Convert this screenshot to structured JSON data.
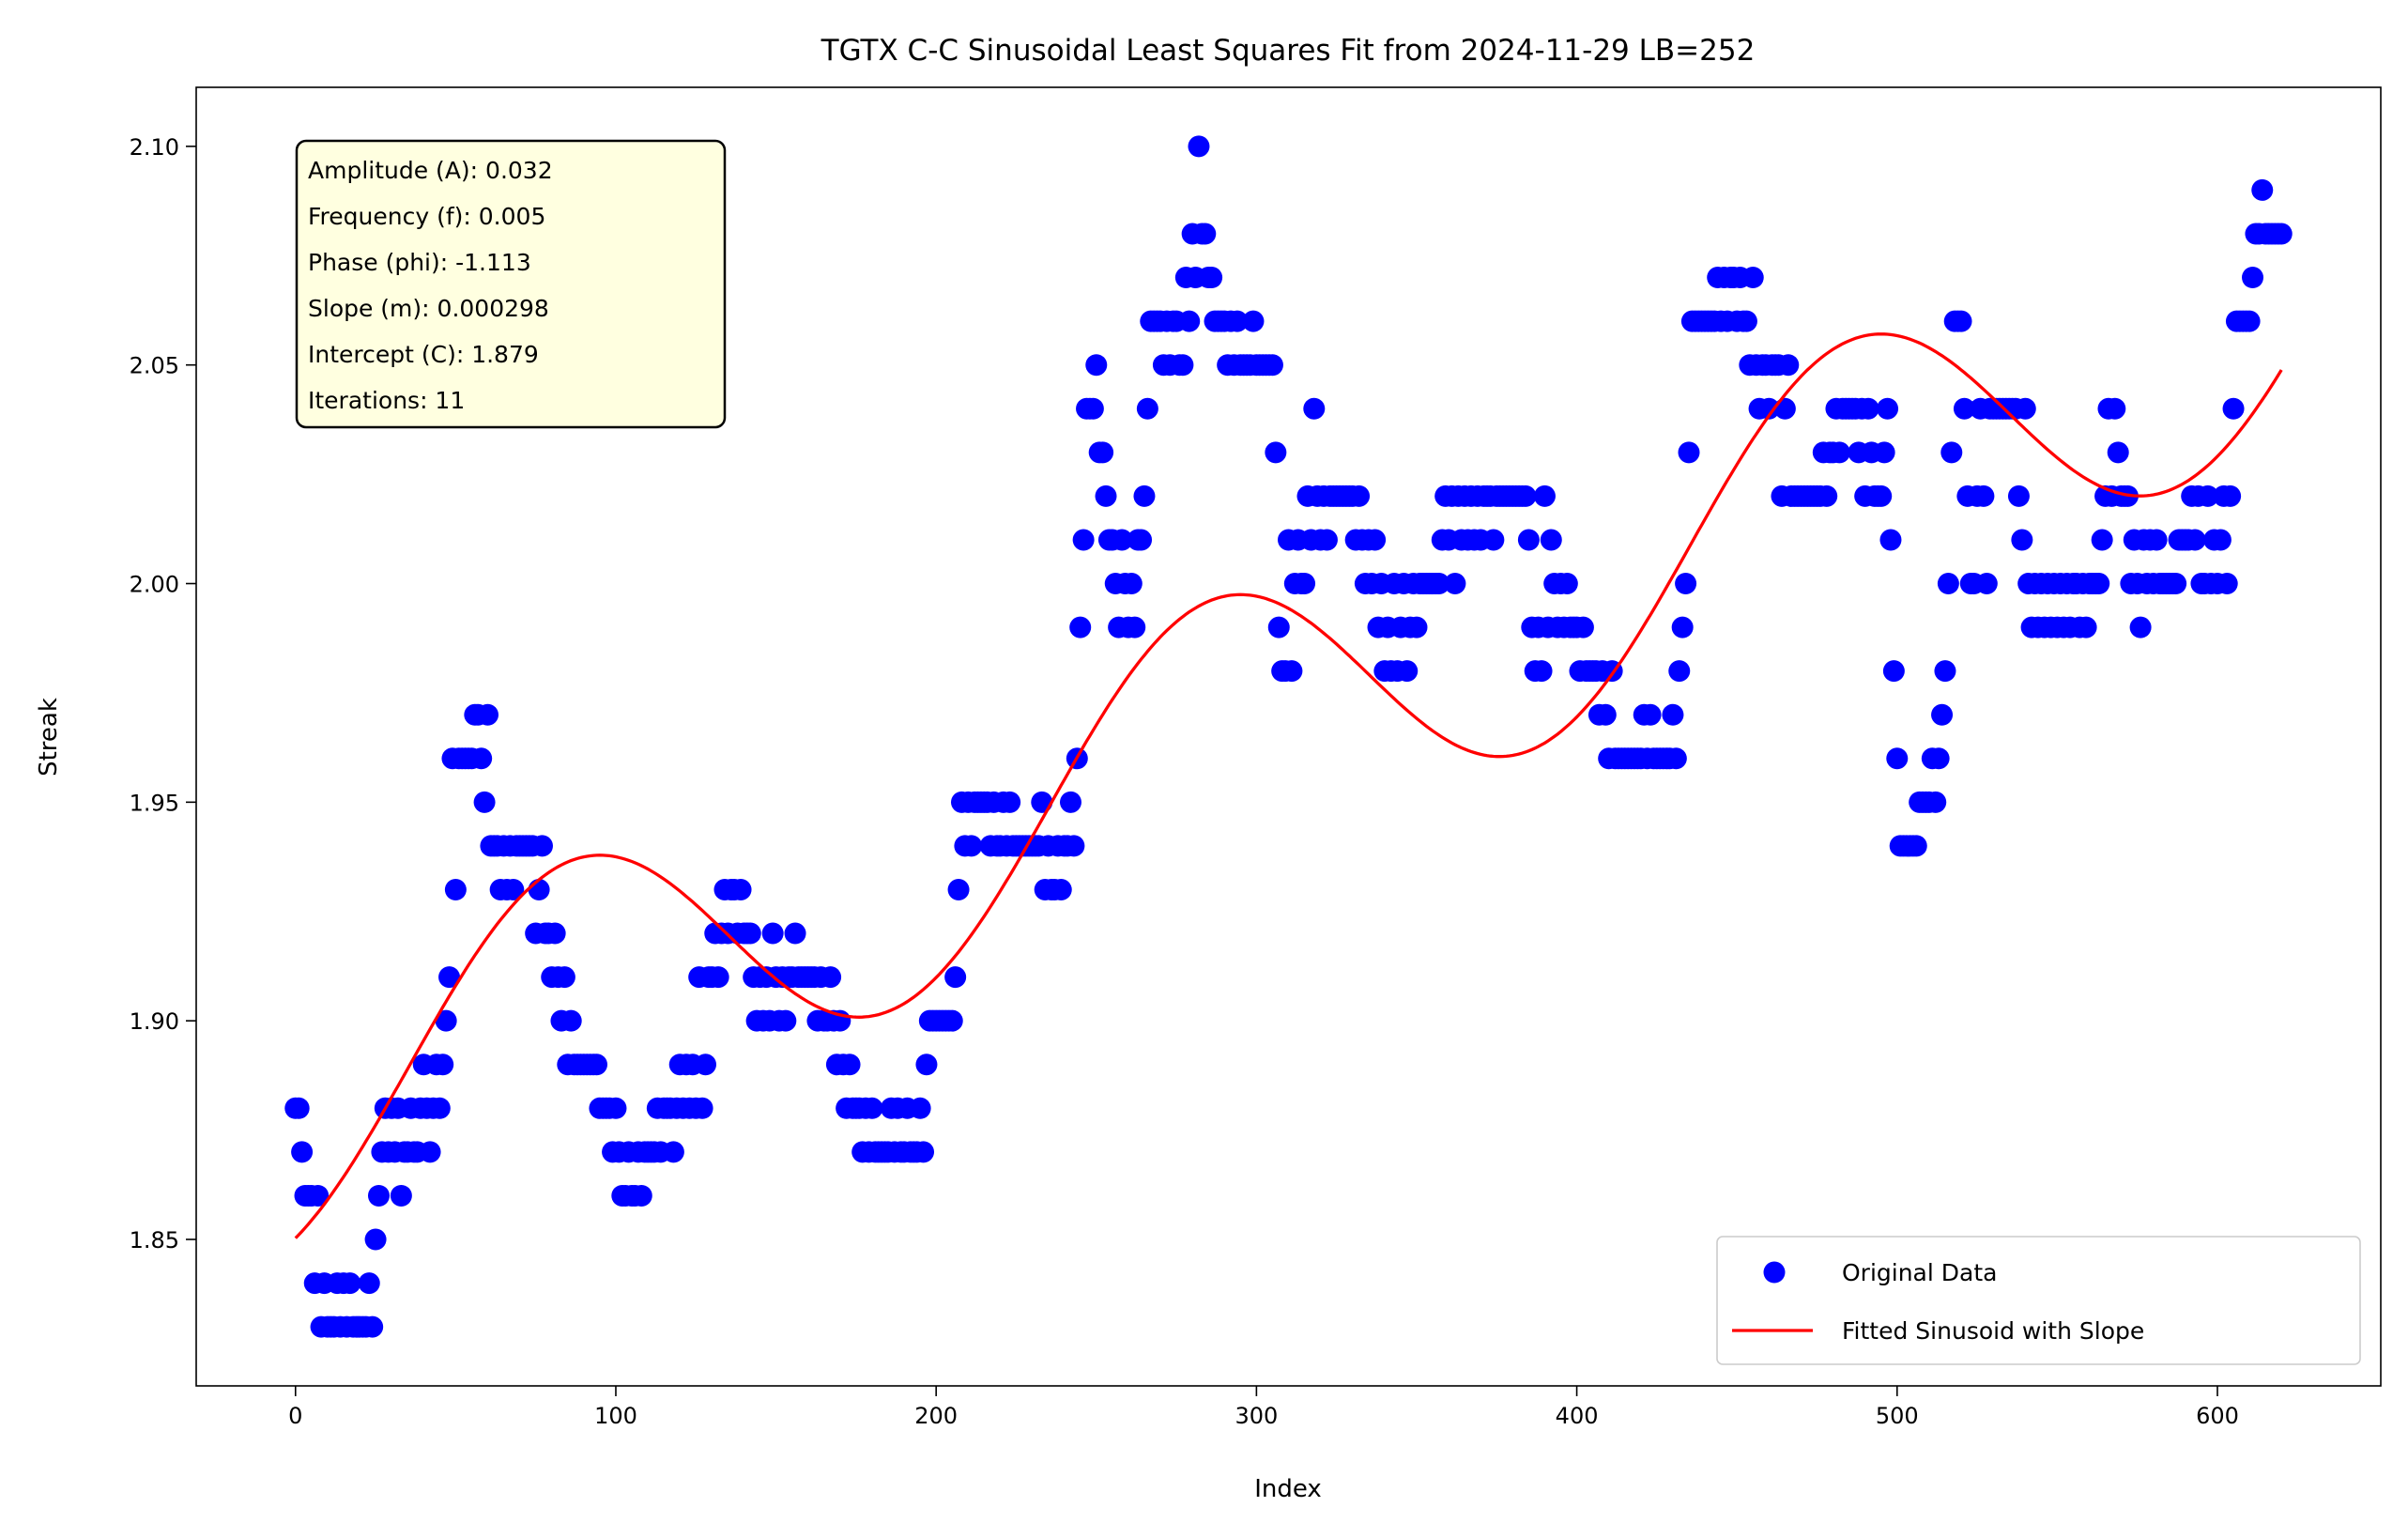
{
  "chart_data": {
    "type": "scatter",
    "title": "TGTX C-C Sinusoidal Least Squares Fit from 2024-11-29 LB=252",
    "xlabel": "Index",
    "ylabel": "Streak",
    "xlim": [
      -31,
      651
    ],
    "ylim": [
      1.8165,
      2.1135
    ],
    "x_ticks": [
      0,
      100,
      200,
      300,
      400,
      500,
      600
    ],
    "x_tick_labels": [
      "0",
      "100",
      "200",
      "300",
      "400",
      "500",
      "600"
    ],
    "y_ticks": [
      1.85,
      1.9,
      1.95,
      2.0,
      2.05,
      2.1
    ],
    "y_tick_labels": [
      "1.85",
      "1.90",
      "1.95",
      "2.00",
      "2.05",
      "2.10"
    ],
    "grid": false,
    "legend_placement": "lower-right",
    "series": [
      {
        "name": "Original Data",
        "kind": "scatter",
        "color": "#0000ff",
        "y": [
          1.88,
          1.88,
          1.87,
          1.86,
          1.86,
          1.86,
          1.84,
          1.86,
          1.83,
          1.84,
          1.83,
          1.83,
          1.83,
          1.84,
          1.83,
          1.84,
          1.83,
          1.84,
          1.83,
          1.83,
          1.83,
          1.83,
          1.83,
          1.84,
          1.83,
          1.85,
          1.86,
          1.87,
          1.88,
          1.87,
          1.88,
          1.87,
          1.88,
          1.86,
          1.87,
          1.87,
          1.88,
          1.87,
          1.87,
          1.88,
          1.89,
          1.88,
          1.87,
          1.88,
          1.89,
          1.88,
          1.89,
          1.9,
          1.91,
          1.96,
          1.93,
          1.96,
          1.96,
          1.96,
          1.96,
          1.96,
          1.97,
          1.97,
          1.96,
          1.95,
          1.97,
          1.94,
          1.94,
          1.94,
          1.93,
          1.94,
          1.93,
          1.94,
          1.93,
          1.94,
          1.94,
          1.94,
          1.94,
          1.94,
          1.94,
          1.92,
          1.93,
          1.94,
          1.92,
          1.92,
          1.91,
          1.92,
          1.91,
          1.9,
          1.91,
          1.89,
          1.9,
          1.89,
          1.89,
          1.89,
          1.89,
          1.89,
          1.89,
          1.89,
          1.89,
          1.88,
          1.88,
          1.88,
          1.88,
          1.87,
          1.88,
          1.87,
          1.86,
          1.86,
          1.87,
          1.86,
          1.86,
          1.87,
          1.86,
          1.87,
          1.87,
          1.87,
          1.87,
          1.88,
          1.87,
          1.88,
          1.88,
          1.88,
          1.87,
          1.88,
          1.89,
          1.88,
          1.89,
          1.88,
          1.89,
          1.88,
          1.91,
          1.88,
          1.89,
          1.91,
          1.91,
          1.92,
          1.91,
          1.92,
          1.93,
          1.92,
          1.93,
          1.93,
          1.92,
          1.93,
          1.92,
          1.92,
          1.92,
          1.91,
          1.9,
          1.91,
          1.9,
          1.91,
          1.9,
          1.92,
          1.91,
          1.9,
          1.91,
          1.9,
          1.91,
          1.91,
          1.92,
          1.91,
          1.91,
          1.91,
          1.91,
          1.91,
          1.91,
          1.9,
          1.91,
          1.9,
          1.9,
          1.91,
          1.9,
          1.89,
          1.9,
          1.89,
          1.88,
          1.89,
          1.88,
          1.88,
          1.88,
          1.87,
          1.88,
          1.87,
          1.88,
          1.87,
          1.87,
          1.87,
          1.87,
          1.87,
          1.88,
          1.87,
          1.88,
          1.87,
          1.87,
          1.88,
          1.87,
          1.87,
          1.87,
          1.88,
          1.87,
          1.89,
          1.9,
          1.9,
          1.9,
          1.9,
          1.9,
          1.9,
          1.9,
          1.9,
          1.91,
          1.93,
          1.95,
          1.94,
          1.95,
          1.94,
          1.95,
          1.95,
          1.95,
          1.95,
          1.95,
          1.94,
          1.95,
          1.94,
          1.94,
          1.95,
          1.94,
          1.95,
          1.94,
          1.94,
          1.94,
          1.94,
          1.94,
          1.94,
          1.94,
          1.94,
          1.94,
          1.95,
          1.93,
          1.94,
          1.93,
          1.93,
          1.94,
          1.93,
          1.94,
          1.94,
          1.95,
          1.94,
          1.96,
          1.99,
          2.01,
          2.04,
          2.04,
          2.04,
          2.05,
          2.03,
          2.03,
          2.02,
          2.01,
          2.01,
          2.0,
          1.99,
          2.01,
          2.0,
          1.99,
          2.0,
          1.99,
          2.01,
          2.01,
          2.02,
          2.04,
          2.06,
          2.06,
          2.06,
          2.06,
          2.05,
          2.06,
          2.05,
          2.06,
          2.06,
          2.05,
          2.05,
          2.07,
          2.06,
          2.08,
          2.07,
          2.1,
          2.08,
          2.08,
          2.07,
          2.07,
          2.06,
          2.06,
          2.06,
          2.06,
          2.05,
          2.06,
          2.05,
          2.06,
          2.05,
          2.05,
          2.05,
          2.05,
          2.06,
          2.05,
          2.05,
          2.05,
          2.05,
          2.05,
          2.05,
          2.03,
          1.99,
          1.98,
          1.98,
          2.01,
          1.98,
          2.0,
          2.01,
          2.0,
          2.0,
          2.02,
          2.01,
          2.04,
          2.02,
          2.01,
          2.02,
          2.01,
          2.02,
          2.02,
          2.02,
          2.02,
          2.02,
          2.02,
          2.02,
          2.02,
          2.01,
          2.02,
          2.01,
          2.0,
          2.01,
          2.0,
          2.01,
          1.99,
          2.0,
          1.98,
          1.99,
          1.98,
          2.0,
          1.98,
          1.99,
          2.0,
          1.98,
          1.99,
          2.0,
          1.99,
          2.0,
          2.0,
          2.0,
          2.0,
          2.0,
          2.0,
          2.0,
          2.01,
          2.02,
          2.01,
          2.02,
          2.0,
          2.02,
          2.01,
          2.02,
          2.01,
          2.02,
          2.01,
          2.02,
          2.01,
          2.02,
          2.02,
          2.02,
          2.01,
          2.02,
          2.02,
          2.02,
          2.02,
          2.02,
          2.02,
          2.02,
          2.02,
          2.02,
          2.02,
          2.01,
          1.99,
          1.98,
          1.99,
          1.98,
          2.02,
          1.99,
          2.01,
          2.0,
          1.99,
          2.0,
          1.99,
          2.0,
          1.99,
          1.99,
          1.99,
          1.98,
          1.99,
          1.98,
          1.98,
          1.98,
          1.98,
          1.97,
          1.98,
          1.97,
          1.96,
          1.98,
          1.96,
          1.96,
          1.96,
          1.96,
          1.96,
          1.96,
          1.96,
          1.96,
          1.96,
          1.97,
          1.96,
          1.97,
          1.96,
          1.96,
          1.96,
          1.96,
          1.96,
          1.96,
          1.97,
          1.96,
          1.98,
          1.99,
          2.0,
          2.03,
          2.06,
          2.06,
          2.06,
          2.06,
          2.06,
          2.06,
          2.06,
          2.06,
          2.07,
          2.06,
          2.07,
          2.06,
          2.07,
          2.07,
          2.06,
          2.07,
          2.06,
          2.06,
          2.05,
          2.07,
          2.05,
          2.04,
          2.05,
          2.05,
          2.04,
          2.05,
          2.05,
          2.05,
          2.02,
          2.04,
          2.05,
          2.02,
          2.02,
          2.02,
          2.02,
          2.02,
          2.02,
          2.02,
          2.02,
          2.02,
          2.02,
          2.03,
          2.02,
          2.03,
          2.03,
          2.04,
          2.03,
          2.04,
          2.04,
          2.04,
          2.04,
          2.04,
          2.03,
          2.04,
          2.02,
          2.04,
          2.03,
          2.02,
          2.02,
          2.02,
          2.03,
          2.04,
          2.01,
          1.98,
          1.96,
          1.94,
          1.94,
          1.94,
          1.94,
          1.94,
          1.94,
          1.95,
          1.95,
          1.95,
          1.95,
          1.96,
          1.95,
          1.96,
          1.97,
          1.98,
          2.0,
          2.03,
          2.06,
          2.06,
          2.06,
          2.04,
          2.02,
          2.0,
          2.0,
          2.02,
          2.04,
          2.02,
          2.0,
          2.04,
          2.04,
          2.04,
          2.04,
          2.04,
          2.04,
          2.04,
          2.04,
          2.04,
          2.02,
          2.01,
          2.04,
          2.0,
          1.99,
          2.0,
          1.99,
          2.0,
          1.99,
          2.0,
          1.99,
          2.0,
          1.99,
          2.0,
          1.99,
          2.0,
          1.99,
          2.0,
          2.0,
          1.99,
          2.0,
          1.99,
          2.0,
          2.0,
          2.0,
          2.0,
          2.01,
          2.02,
          2.04,
          2.02,
          2.04,
          2.03,
          2.02,
          2.02,
          2.02,
          2.0,
          2.01,
          2.0,
          1.99,
          2.01,
          2.0,
          2.01,
          2.0,
          2.01,
          2.0,
          2.0,
          2.0,
          2.0,
          2.0,
          2.0,
          2.01,
          2.01,
          2.01,
          2.01,
          2.02,
          2.01,
          2.02,
          2.0,
          2.0,
          2.02,
          2.0,
          2.01,
          2.0,
          2.01,
          2.02,
          2.0,
          2.02,
          2.04,
          2.06,
          2.06,
          2.06,
          2.06,
          2.06,
          2.07,
          2.08,
          2.08,
          2.09,
          2.08,
          2.08,
          2.08,
          2.08,
          2.08,
          2.08
        ]
      },
      {
        "name": "Fitted Sinusoid with Slope",
        "kind": "line",
        "color": "#ff0000",
        "model": "A*sin(2*pi*f*x + phi) + m*x + C",
        "x_range": [
          0,
          620
        ]
      }
    ],
    "fit_params": {
      "amplitude": 0.032,
      "frequency": 0.005,
      "phase": -1.113,
      "slope": 0.000298,
      "intercept": 1.879,
      "iterations": 11
    },
    "annotation_box": {
      "background": "#ffffe0",
      "lines": [
        "Amplitude (A): 0.032",
        "Frequency (f): 0.005",
        "Phase (phi): -1.113",
        "Slope (m): 0.000298",
        "Intercept (C): 1.879",
        "Iterations: 11"
      ]
    }
  }
}
